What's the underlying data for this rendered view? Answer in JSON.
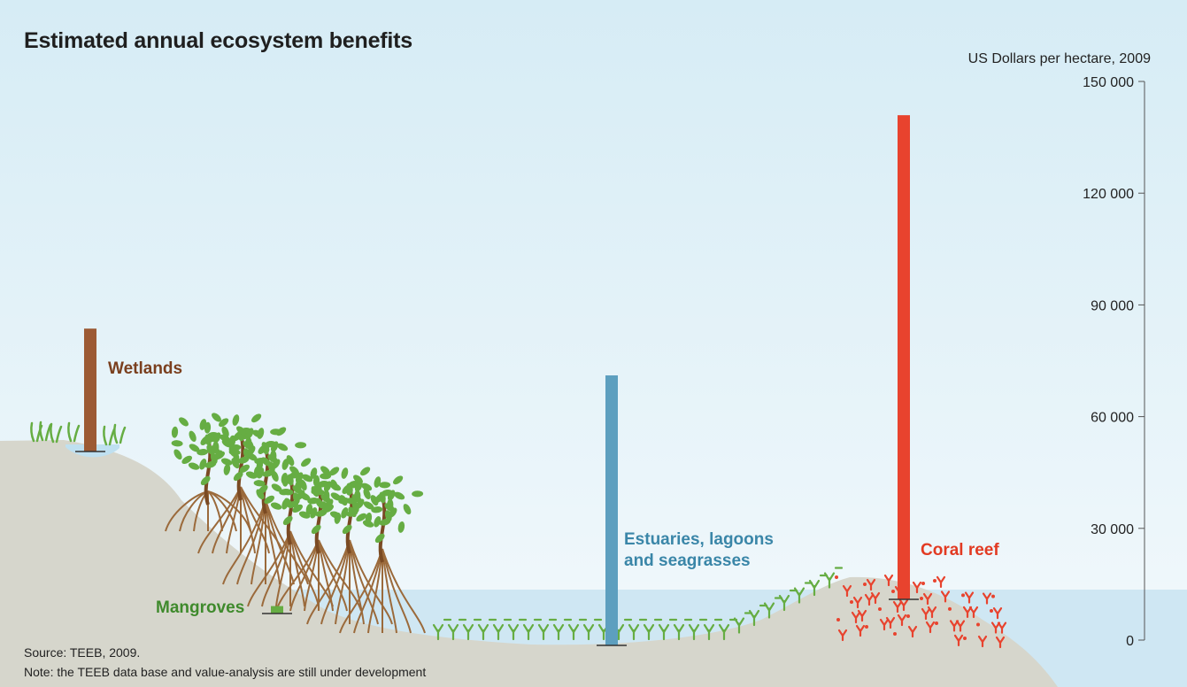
{
  "title": "Estimated annual ecosystem benefits",
  "unit_label": "US Dollars per hectare, 2009",
  "source": "Source: TEEB, 2009.",
  "note": "Note: the TEEB data base and value-analysis are still under development",
  "colors": {
    "sky_top": "#d6ecf5",
    "sky_bottom": "#f3f9fc",
    "land": "#d6d6cc",
    "water": "#cfe7f3",
    "wetlands": "#9c5a34",
    "mangroves": "#66ad43",
    "estuaries": "#5d9fbf",
    "coral": "#e8432e"
  },
  "chart_data": {
    "type": "bar",
    "title": "Estimated annual ecosystem benefits",
    "ylabel": "US Dollars per hectare, 2009",
    "ylim": [
      0,
      150000
    ],
    "yticks": [
      0,
      30000,
      60000,
      90000,
      120000,
      150000
    ],
    "ytick_labels": [
      "0",
      "30 000",
      "60 000",
      "90 000",
      "120 000",
      "150 000"
    ],
    "series": [
      {
        "category": "Wetlands",
        "label_lines": [
          "Wetlands"
        ],
        "value": 33000,
        "color": "#9c5a34"
      },
      {
        "category": "Mangroves",
        "label_lines": [
          "Mangroves"
        ],
        "value": 2000,
        "color": "#66ad43"
      },
      {
        "category": "Estuaries, lagoons and seagrasses",
        "label_lines": [
          "Estuaries, lagoons",
          "and seagrasses"
        ],
        "value": 72500,
        "color": "#5d9fbf"
      },
      {
        "category": "Coral reef",
        "label_lines": [
          "Coral reef"
        ],
        "value": 130000,
        "color": "#e8432e"
      }
    ]
  }
}
